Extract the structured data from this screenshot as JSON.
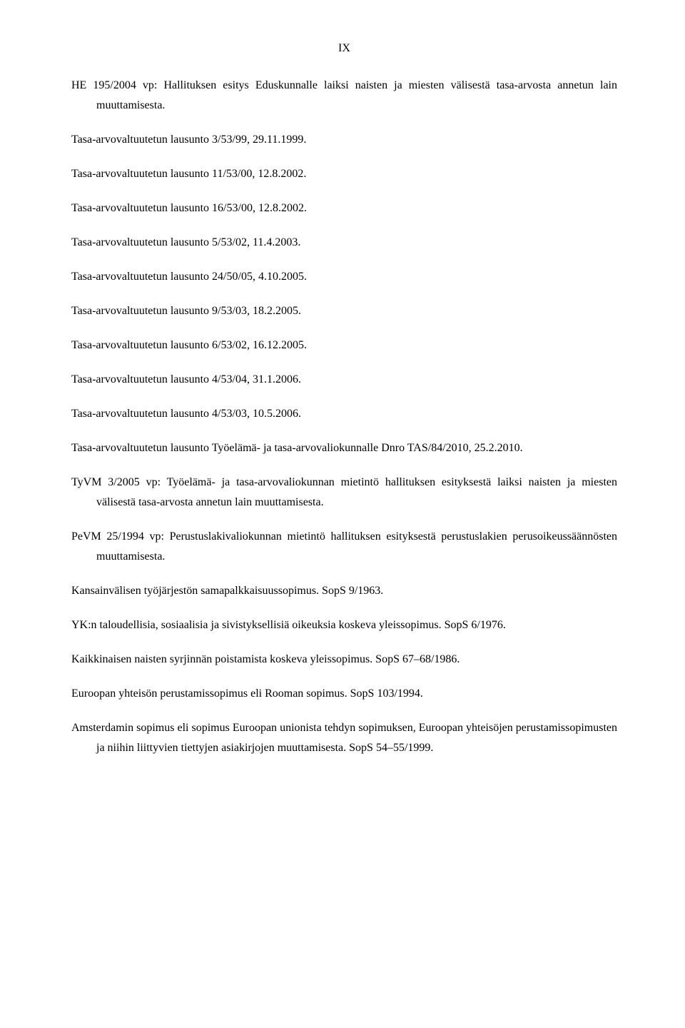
{
  "page_number": "IX",
  "entries": [
    {
      "text": "HE 195/2004 vp: Hallituksen esitys Eduskunnalle laiksi naisten ja miesten välisestä tasa-arvosta annetun lain muuttamisesta.",
      "indent": true
    },
    {
      "text": "Tasa-arvovaltuutetun lausunto 3/53/99, 29.11.1999.",
      "indent": false
    },
    {
      "text": "Tasa-arvovaltuutetun lausunto 11/53/00, 12.8.2002.",
      "indent": false
    },
    {
      "text": "Tasa-arvovaltuutetun lausunto 16/53/00, 12.8.2002.",
      "indent": false
    },
    {
      "text": "Tasa-arvovaltuutetun lausunto 5/53/02, 11.4.2003.",
      "indent": false
    },
    {
      "text": "Tasa-arvovaltuutetun lausunto 24/50/05, 4.10.2005.",
      "indent": false
    },
    {
      "text": "Tasa-arvovaltuutetun lausunto 9/53/03, 18.2.2005.",
      "indent": false
    },
    {
      "text": "Tasa-arvovaltuutetun lausunto 6/53/02, 16.12.2005.",
      "indent": false
    },
    {
      "text": "Tasa-arvovaltuutetun lausunto 4/53/04, 31.1.2006.",
      "indent": false
    },
    {
      "text": "Tasa-arvovaltuutetun lausunto 4/53/03, 10.5.2006.",
      "indent": false
    },
    {
      "text": "Tasa-arvovaltuutetun lausunto Työelämä- ja tasa-arvovaliokunnalle Dnro TAS/84/2010, 25.2.2010.",
      "indent": true
    },
    {
      "text": "TyVM 3/2005 vp: Työelämä- ja tasa-arvovaliokunnan mietintö hallituksen esityksestä laiksi naisten ja miesten välisestä tasa-arvosta annetun lain muuttamisesta.",
      "indent": true
    },
    {
      "text": "PeVM 25/1994 vp: Perustuslakivaliokunnan mietintö hallituksen esityksestä perustuslakien perusoikeussäännösten muuttamisesta.",
      "indent": true
    },
    {
      "text": "Kansainvälisen työjärjestön samapalkkaisuussopimus. SopS 9/1963.",
      "indent": false
    },
    {
      "text": "YK:n taloudellisia, sosiaalisia ja sivistyksellisiä oikeuksia koskeva yleissopimus. SopS 6/1976.",
      "indent": false
    },
    {
      "text": "Kaikkinaisen naisten syrjinnän poistamista koskeva yleissopimus. SopS 67–68/1986.",
      "indent": false
    },
    {
      "text": "Euroopan yhteisön perustamissopimus eli Rooman sopimus. SopS 103/1994.",
      "indent": false
    },
    {
      "text": "Amsterdamin sopimus eli sopimus Euroopan unionista tehdyn sopimuksen, Euroopan yhteisöjen perustamissopimusten ja niihin liittyvien tiettyjen asiakirjojen muuttamisesta. SopS 54–55/1999.",
      "indent": true
    }
  ]
}
